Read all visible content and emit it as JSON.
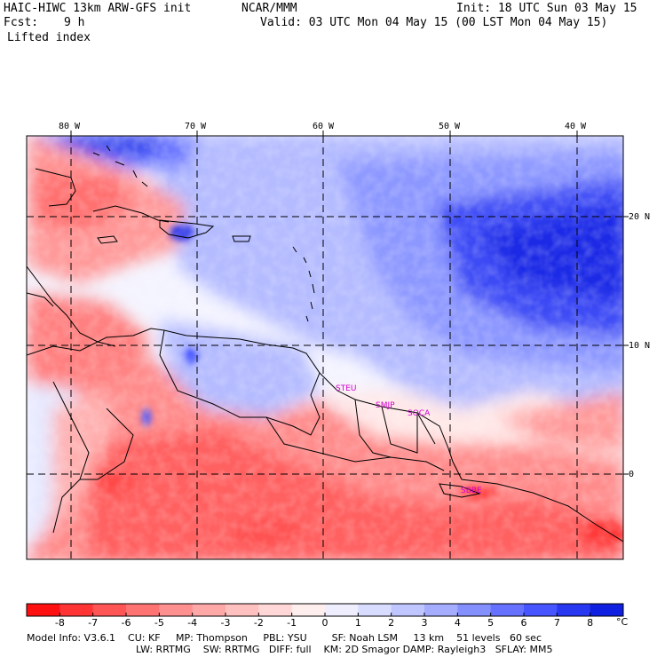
{
  "header": {
    "model": "HAIC-HIWC 13km ARW-GFS init",
    "org": "NCAR/MMM",
    "init": "Init: 18 UTC Sun 03 May 15",
    "fcst_label": "Fcst:",
    "fcst_value": "9 h",
    "valid": "Valid: 03 UTC Mon 04 May 15 (00 LST Mon 04 May 15)",
    "field": "Lifted index"
  },
  "map": {
    "longitude_labels": [
      "80 W",
      "70 W",
      "60 W",
      "50 W",
      "40 W"
    ],
    "latitude_labels": [
      "20 N",
      "10 N",
      "0"
    ],
    "stations": [
      "STEU",
      "SMJP",
      "SOCA",
      "SBBE"
    ],
    "colors": {
      "negative_strong": "#ff1a1a",
      "negative_light": "#ffc8c8",
      "neutral": "#ffffff",
      "positive_light": "#d6dcff",
      "positive_strong": "#0a1ae6"
    }
  },
  "colorbar": {
    "ticks": [
      "-8",
      "-7",
      "-6",
      "-5",
      "-4",
      "-3",
      "-2",
      "-1",
      "0",
      "1",
      "2",
      "3",
      "4",
      "5",
      "6",
      "7",
      "8"
    ],
    "unit": "°C",
    "colors": [
      "#ff1010",
      "#ff3535",
      "#ff5555",
      "#ff7373",
      "#ff9090",
      "#ffa8a8",
      "#ffc0c0",
      "#ffd7d7",
      "#ffeeee",
      "#eeeeff",
      "#d8dcff",
      "#c0c6ff",
      "#a4adff",
      "#8590ff",
      "#6672ff",
      "#4655ff",
      "#2838f0",
      "#1020e0"
    ]
  },
  "footer": {
    "line1": "Model Info: V3.6.1    CU: KF     MP: Thompson     PBL: YSU        SF: Noah LSM     13 km    51 levels   60 sec",
    "line2": "LW: RRTMG    SW: RRTMG   DIFF: full    KM: 2D Smagor DAMP: Rayleigh3   SFLAY: MM5"
  }
}
